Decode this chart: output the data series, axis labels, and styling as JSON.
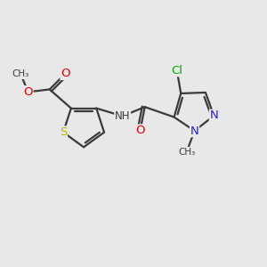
{
  "background_color": "#e8e8e8",
  "bond_color": "#3a3a3a",
  "bond_width": 1.6,
  "atom_colors": {
    "S": "#b8b800",
    "O": "#e00000",
    "N": "#2020dd",
    "Cl": "#00aa00",
    "C": "#3a3a3a",
    "H": "#3a3a3a"
  },
  "font_size": 8.5,
  "xlim": [
    0,
    10
  ],
  "ylim": [
    0,
    10
  ]
}
